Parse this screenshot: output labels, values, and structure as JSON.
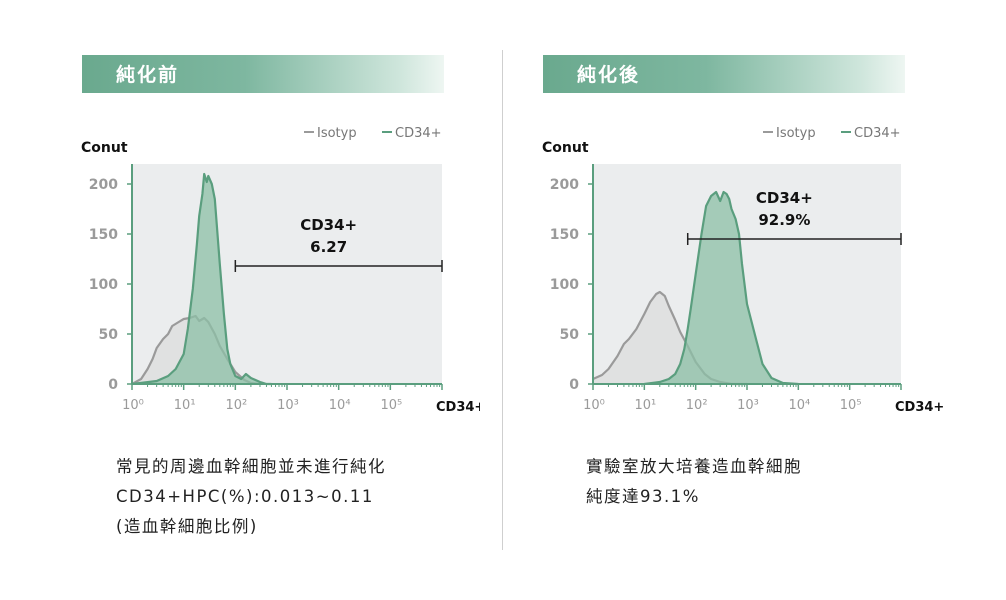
{
  "panels": [
    {
      "header": "純化前",
      "caption": [
        "常見的周邊血幹細胞並未進行純化",
        "CD34+HPC(%):0.013~0.11",
        "(造血幹細胞比例)"
      ],
      "chart_data": {
        "type": "area",
        "ylabel": "Conut",
        "xlabel": "CD34+",
        "x_scale": "log10",
        "xlim": [
          1,
          1000000
        ],
        "ylim": [
          0,
          220
        ],
        "yticks": [
          0,
          50,
          100,
          150,
          200
        ],
        "ytick_labels": [
          "0",
          "50",
          "100",
          "150",
          "200"
        ],
        "xtick_labels": [
          "10⁰",
          "10¹",
          "10²",
          "10³",
          "10⁴",
          "10⁵"
        ],
        "legend": [
          "Isotyp",
          "CD34+"
        ],
        "legend_position": "top-right",
        "gate": {
          "label": "CD34+",
          "value": "6.27",
          "from": 100,
          "to": 1000000,
          "y": 118
        },
        "series": [
          {
            "name": "Isotyp",
            "color": "#9a9a9a",
            "fill": "#dcdcdc",
            "x": [
              1,
              1.5,
              2,
              2.5,
              3,
              4,
              5,
              6,
              8,
              10,
              13,
              17,
              20,
              25,
              30,
              40,
              50,
              70,
              100,
              150,
              200,
              300
            ],
            "y": [
              0,
              5,
              15,
              25,
              36,
              45,
              50,
              58,
              62,
              65,
              66,
              68,
              63,
              66,
              62,
              50,
              38,
              25,
              12,
              4,
              1,
              0
            ]
          },
          {
            "name": "CD34+",
            "color": "#5a9e7e",
            "fill": "#8cbfa5",
            "x": [
              1,
              3,
              5,
              7,
              10,
              12,
              15,
              18,
              20,
              23,
              25,
              28,
              30,
              35,
              40,
              50,
              60,
              70,
              80,
              100,
              130,
              160,
              200,
              300,
              400,
              500
            ],
            "y": [
              0,
              3,
              8,
              15,
              30,
              55,
              95,
              140,
              168,
              190,
              210,
              202,
              208,
              200,
              185,
              120,
              70,
              35,
              20,
              8,
              5,
              10,
              6,
              2,
              0,
              0
            ]
          }
        ]
      }
    },
    {
      "header": "純化後",
      "caption": [
        "實驗室放大培養造血幹細胞",
        "純度達93.1%"
      ],
      "chart_data": {
        "type": "area",
        "ylabel": "Conut",
        "xlabel": "CD34+",
        "x_scale": "log10",
        "xlim": [
          1,
          1000000
        ],
        "ylim": [
          0,
          220
        ],
        "yticks": [
          0,
          50,
          100,
          150,
          200
        ],
        "ytick_labels": [
          "0",
          "50",
          "100",
          "150",
          "200"
        ],
        "xtick_labels": [
          "10⁰",
          "10¹",
          "10²",
          "10³",
          "10⁴",
          "10⁵"
        ],
        "legend": [
          "Isotyp",
          "CD34+"
        ],
        "legend_position": "top-right",
        "gate": {
          "label": "CD34+",
          "value": "92.9%",
          "from": 70,
          "to": 1000000,
          "y": 145
        },
        "series": [
          {
            "name": "Isotyp",
            "color": "#9a9a9a",
            "fill": "#dcdcdc",
            "x": [
              1,
              1.5,
              2,
              3,
              4,
              5,
              7,
              10,
              13,
              17,
              20,
              25,
              30,
              40,
              50,
              70,
              100,
              150,
              200,
              300,
              500,
              1000
            ],
            "y": [
              5,
              9,
              15,
              28,
              40,
              45,
              55,
              70,
              82,
              90,
              92,
              88,
              78,
              64,
              52,
              38,
              22,
              10,
              5,
              2,
              0,
              0
            ]
          },
          {
            "name": "CD34+",
            "color": "#5a9e7e",
            "fill": "#8cbfa5",
            "x": [
              10,
              20,
              30,
              40,
              50,
              60,
              70,
              80,
              100,
              130,
              160,
              200,
              250,
              300,
              350,
              400,
              450,
              500,
              600,
              700,
              800,
              1000,
              1500,
              2000,
              3000,
              5000,
              10000
            ],
            "y": [
              0,
              2,
              5,
              10,
              20,
              35,
              55,
              75,
              110,
              150,
              178,
              188,
              192,
              183,
              192,
              190,
              185,
              175,
              165,
              150,
              120,
              80,
              45,
              20,
              6,
              1,
              0
            ]
          }
        ]
      }
    }
  ]
}
